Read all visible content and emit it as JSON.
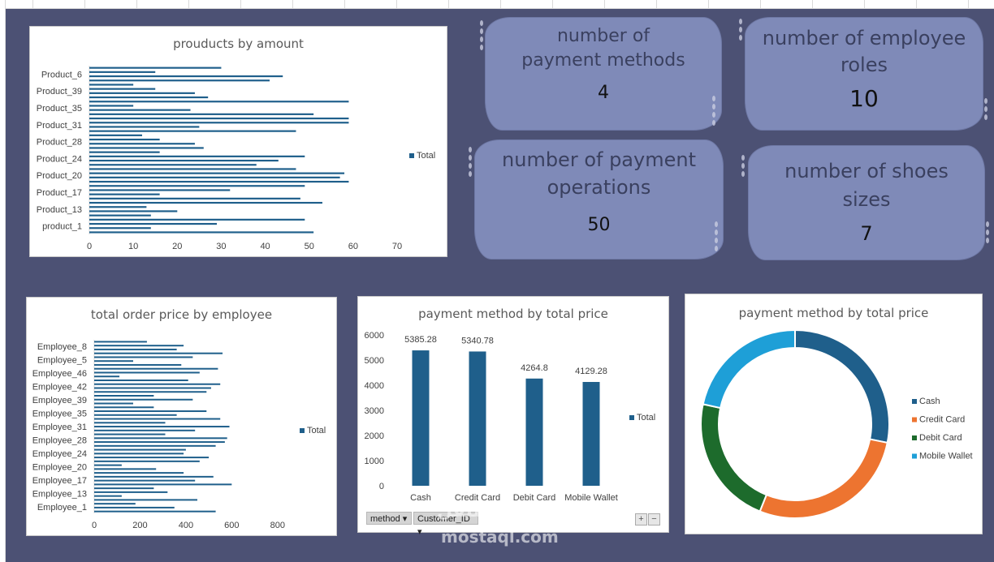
{
  "colors": {
    "bar": "#1f5f8b",
    "cash": "#1f5f8b",
    "credit": "#ed7430",
    "debit": "#1d6b2c",
    "wallet": "#1e9fd7",
    "background": "#4c5174",
    "card": "#7f8ab8"
  },
  "products_chart": {
    "title": "prouducts by amount",
    "legend": "Total",
    "y_labels": [
      "Product_6",
      "Product_39",
      "Product_35",
      "Product_31",
      "Product_28",
      "Product_24",
      "Product_20",
      "Product_17",
      "Product_13",
      "product_1"
    ],
    "x_ticks": [
      "0",
      "10",
      "20",
      "30",
      "40",
      "50",
      "60",
      "70"
    ]
  },
  "kpis": [
    {
      "label": "number of payment methods",
      "value": "4"
    },
    {
      "label": "number of employee roles",
      "value": "10"
    },
    {
      "label": "number of payment operations",
      "value": "50"
    },
    {
      "label": "number of shoes sizes",
      "value": "7"
    }
  ],
  "employee_chart": {
    "title": "total order price by employee",
    "legend": "Total",
    "y_labels": [
      "Employee_8",
      "Employee_5",
      "Employee_46",
      "Employee_42",
      "Employee_39",
      "Employee_35",
      "Employee_31",
      "Employee_28",
      "Employee_24",
      "Employee_20",
      "Employee_17",
      "Employee_13",
      "Employee_1"
    ],
    "x_ticks": [
      "0",
      "200",
      "400",
      "600",
      "800"
    ]
  },
  "payment_bar_chart": {
    "title": "payment method by total price",
    "legend": "Total",
    "y_ticks": [
      "6000",
      "5000",
      "4000",
      "3000",
      "2000",
      "1000",
      "0"
    ],
    "slicers": [
      "method",
      "Customer_ID"
    ],
    "zoom_plus": "+",
    "zoom_minus": "−"
  },
  "payment_donut_chart": {
    "title": "payment method by total price"
  },
  "chart_data": [
    {
      "type": "bar",
      "orientation": "horizontal",
      "title": "prouducts by amount",
      "xlim": [
        0,
        70
      ],
      "series": [
        {
          "name": "Total",
          "values": [
            30,
            15,
            44,
            41,
            10,
            15,
            24,
            27,
            59,
            10,
            23,
            51,
            59,
            59,
            25,
            47,
            12,
            16,
            24,
            26,
            16,
            49,
            43,
            38,
            47,
            58,
            57,
            59,
            49,
            32,
            16,
            48,
            53,
            13,
            20,
            14,
            49,
            29,
            14,
            51
          ]
        }
      ]
    },
    {
      "type": "bar",
      "orientation": "horizontal",
      "title": "total order price by employee",
      "xlim": [
        0,
        900
      ],
      "series": [
        {
          "name": "Total",
          "values": [
            230,
            390,
            360,
            560,
            430,
            170,
            380,
            540,
            460,
            110,
            410,
            550,
            510,
            490,
            260,
            430,
            170,
            260,
            490,
            360,
            550,
            310,
            590,
            440,
            310,
            580,
            570,
            530,
            400,
            390,
            500,
            460,
            120,
            270,
            390,
            520,
            440,
            600,
            260,
            320,
            120,
            450,
            180,
            350,
            530
          ]
        }
      ]
    },
    {
      "type": "bar",
      "title": "payment method by total price",
      "categories": [
        "Cash",
        "Credit Card",
        "Debit Card",
        "Mobile Wallet"
      ],
      "series": [
        {
          "name": "Total",
          "values": [
            5385.28,
            5340.78,
            4264.8,
            4129.28
          ]
        }
      ],
      "data_labels": [
        "5385.28",
        "5340.78",
        "4264.8",
        "4129.28"
      ],
      "ylim": [
        0,
        6000
      ]
    },
    {
      "type": "pie",
      "title": "payment method by total price",
      "categories": [
        "Cash",
        "Credit Card",
        "Debit Card",
        "Mobile Wallet"
      ],
      "values": [
        5385.28,
        5340.78,
        4264.8,
        4129.28
      ],
      "legend": "right"
    }
  ],
  "watermark": {
    "ar": "مستقل",
    "en": "mostaql.com"
  }
}
